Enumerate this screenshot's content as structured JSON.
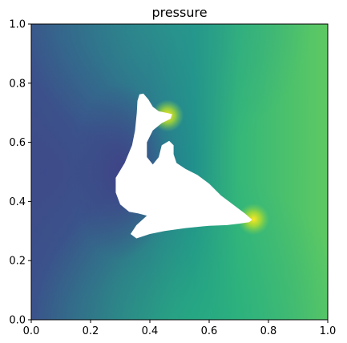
{
  "chart_data": {
    "type": "heatmap",
    "title": "pressure",
    "xlabel": "",
    "ylabel": "",
    "xlim": [
      0,
      1
    ],
    "ylim": [
      0,
      1
    ],
    "x_ticks": [
      "0.0",
      "0.2",
      "0.4",
      "0.6",
      "0.8",
      "1.0"
    ],
    "y_ticks": [
      "0.0",
      "0.2",
      "0.4",
      "0.6",
      "0.8",
      "1.0"
    ],
    "x_tick_values": [
      0,
      0.2,
      0.4,
      0.6,
      0.8,
      1.0
    ],
    "y_tick_values": [
      0,
      0.2,
      0.4,
      0.6,
      0.8,
      1.0
    ],
    "colormap": "viridis",
    "grid": false,
    "legend": "none",
    "obstacle": {
      "shape": "dolphin",
      "fill": "#ffffff",
      "outline": [
        [
          0.378,
          0.765
        ],
        [
          0.365,
          0.762
        ],
        [
          0.358,
          0.74
        ],
        [
          0.356,
          0.7
        ],
        [
          0.35,
          0.64
        ],
        [
          0.34,
          0.59
        ],
        [
          0.315,
          0.53
        ],
        [
          0.285,
          0.48
        ],
        [
          0.285,
          0.43
        ],
        [
          0.3,
          0.39
        ],
        [
          0.33,
          0.365
        ],
        [
          0.36,
          0.36
        ],
        [
          0.39,
          0.352
        ],
        [
          0.355,
          0.32
        ],
        [
          0.335,
          0.29
        ],
        [
          0.355,
          0.275
        ],
        [
          0.4,
          0.29
        ],
        [
          0.45,
          0.3
        ],
        [
          0.52,
          0.31
        ],
        [
          0.6,
          0.318
        ],
        [
          0.66,
          0.32
        ],
        [
          0.7,
          0.325
        ],
        [
          0.735,
          0.33
        ],
        [
          0.745,
          0.338
        ],
        [
          0.72,
          0.36
        ],
        [
          0.68,
          0.39
        ],
        [
          0.64,
          0.42
        ],
        [
          0.6,
          0.46
        ],
        [
          0.56,
          0.49
        ],
        [
          0.52,
          0.51
        ],
        [
          0.49,
          0.53
        ],
        [
          0.48,
          0.56
        ],
        [
          0.48,
          0.59
        ],
        [
          0.465,
          0.605
        ],
        [
          0.44,
          0.59
        ],
        [
          0.43,
          0.55
        ],
        [
          0.41,
          0.525
        ],
        [
          0.39,
          0.55
        ],
        [
          0.39,
          0.6
        ],
        [
          0.41,
          0.64
        ],
        [
          0.44,
          0.665
        ],
        [
          0.47,
          0.68
        ],
        [
          0.475,
          0.695
        ],
        [
          0.455,
          0.7
        ],
        [
          0.43,
          0.705
        ],
        [
          0.41,
          0.72
        ],
        [
          0.395,
          0.745
        ]
      ]
    },
    "field_samples": [
      {
        "x": 0.0,
        "y": 0.5,
        "value": 0.15
      },
      {
        "x": 0.1,
        "y": 0.5,
        "value": 0.18
      },
      {
        "x": 0.2,
        "y": 0.5,
        "value": 0.22
      },
      {
        "x": 0.3,
        "y": 0.45,
        "value": 0.12
      },
      {
        "x": 0.5,
        "y": 0.9,
        "value": 0.55
      },
      {
        "x": 0.8,
        "y": 0.6,
        "value": 0.75
      },
      {
        "x": 1.0,
        "y": 0.5,
        "value": 0.78
      },
      {
        "x": 0.5,
        "y": 0.1,
        "value": 0.5
      },
      {
        "x": 0.9,
        "y": 0.1,
        "value": 0.68
      },
      {
        "x": 0.75,
        "y": 0.34,
        "value": 0.95
      },
      {
        "x": 0.46,
        "y": 0.69,
        "value": 0.98
      }
    ]
  }
}
